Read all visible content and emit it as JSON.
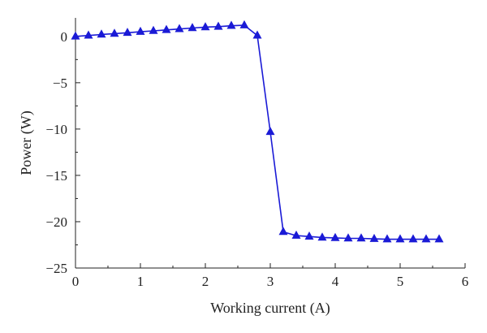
{
  "chart_data": {
    "type": "line",
    "title": "",
    "xlabel": "Working current (A)",
    "ylabel": "Power (W)",
    "xlim": [
      0,
      6
    ],
    "ylim": [
      -25,
      2
    ],
    "xticks": [
      "0",
      "1",
      "2",
      "3",
      "4",
      "5",
      "6"
    ],
    "yticks": [
      "0",
      "−5",
      "−10",
      "−15",
      "−20",
      "−25"
    ],
    "grid": false,
    "legend": "none",
    "series": [
      {
        "marker": "triangle",
        "color": "#1a1ad6",
        "x": [
          0.0,
          0.2,
          0.4,
          0.6,
          0.8,
          1.0,
          1.2,
          1.4,
          1.6,
          1.8,
          2.0,
          2.2,
          2.4,
          2.6,
          2.8,
          3.0,
          3.2,
          3.4,
          3.6,
          3.8,
          4.0,
          4.2,
          4.4,
          4.6,
          4.8,
          5.0,
          5.2,
          5.4,
          5.6
        ],
        "y": [
          0.0,
          0.1,
          0.2,
          0.3,
          0.4,
          0.5,
          0.6,
          0.7,
          0.8,
          0.9,
          1.0,
          1.05,
          1.15,
          1.2,
          0.1,
          -10.3,
          -21.1,
          -21.5,
          -21.6,
          -21.7,
          -21.75,
          -21.8,
          -21.8,
          -21.85,
          -21.9,
          -21.9,
          -21.9,
          -21.9,
          -21.9
        ]
      }
    ]
  }
}
